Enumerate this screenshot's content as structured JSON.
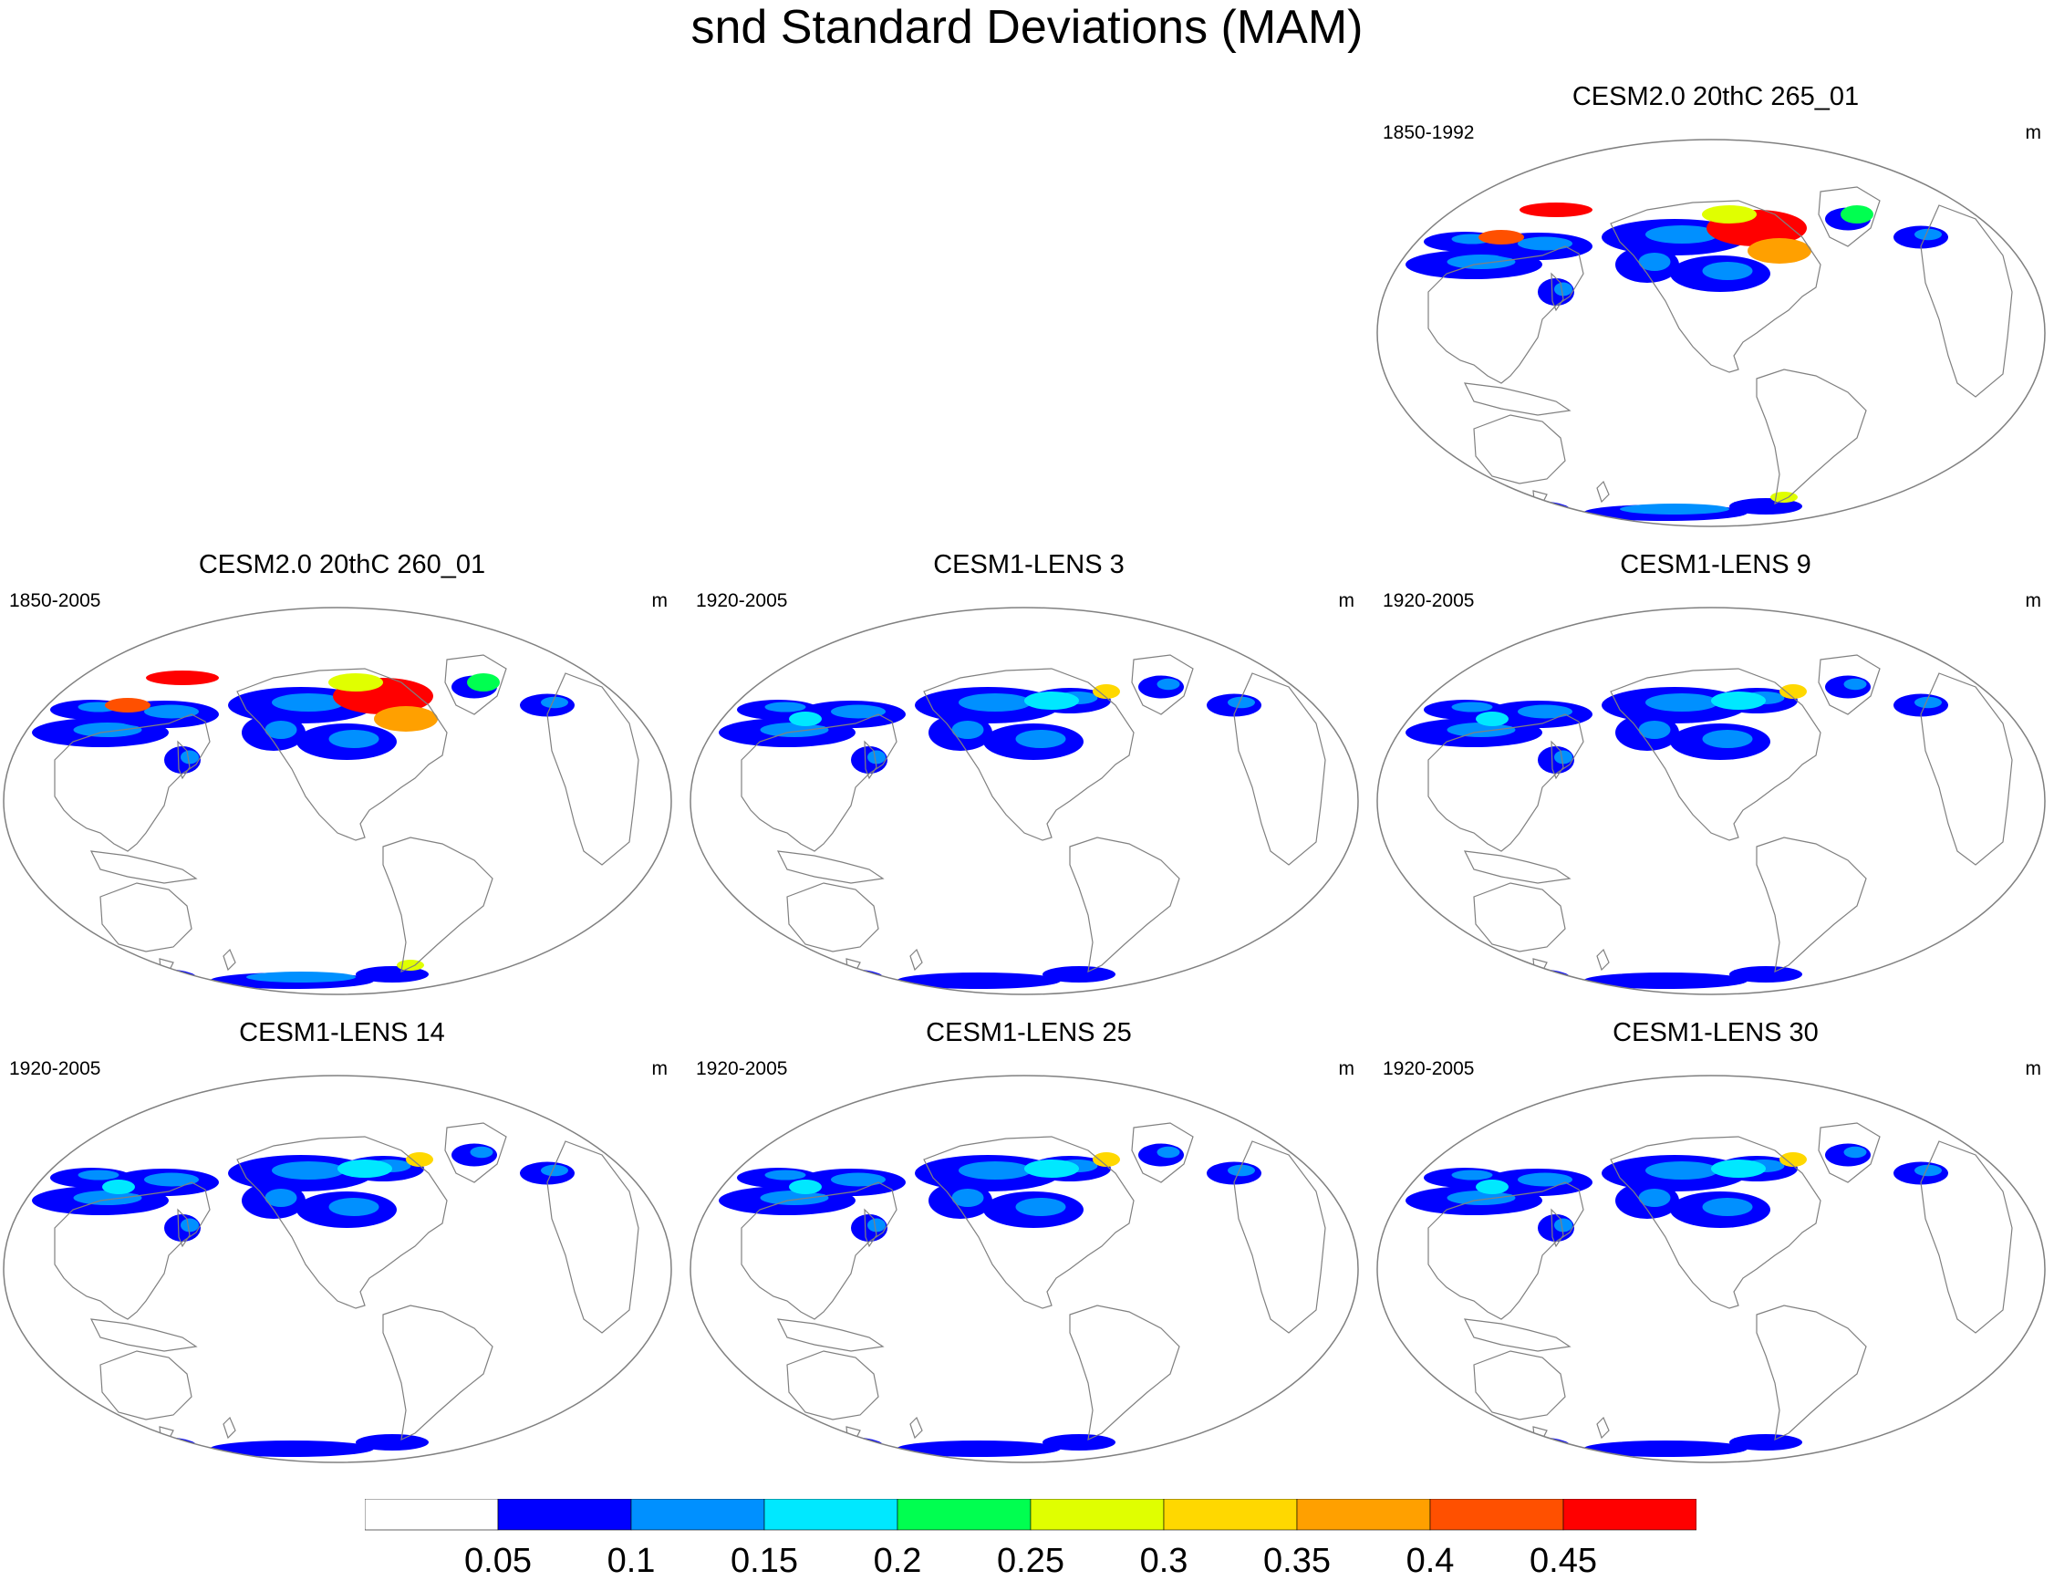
{
  "title": "snd Standard Deviations (MAM)",
  "panels": [
    {
      "id": "cesm2-265",
      "title": "CESM2.0 20thC 265_01",
      "period": "1850-1992",
      "units": "m",
      "intensity": "high"
    },
    {
      "id": "cesm2-260",
      "title": "CESM2.0 20thC 260_01",
      "period": "1850-2005",
      "units": "m",
      "intensity": "high"
    },
    {
      "id": "lens-3",
      "title": "CESM1-LENS 3",
      "period": "1920-2005",
      "units": "m",
      "intensity": "low"
    },
    {
      "id": "lens-9",
      "title": "CESM1-LENS 9",
      "period": "1920-2005",
      "units": "m",
      "intensity": "low"
    },
    {
      "id": "lens-14",
      "title": "CESM1-LENS 14",
      "period": "1920-2005",
      "units": "m",
      "intensity": "low"
    },
    {
      "id": "lens-25",
      "title": "CESM1-LENS 25",
      "period": "1920-2005",
      "units": "m",
      "intensity": "low"
    },
    {
      "id": "lens-30",
      "title": "CESM1-LENS 30",
      "period": "1920-2005",
      "units": "m",
      "intensity": "low"
    }
  ],
  "colorbar": {
    "labels": [
      "0.05",
      "0.1",
      "0.15",
      "0.2",
      "0.25",
      "0.3",
      "0.35",
      "0.4",
      "0.45"
    ],
    "colors": [
      "#ffffff",
      "#0000ff",
      "#0090ff",
      "#00e8ff",
      "#00ff50",
      "#e0ff00",
      "#ffd800",
      "#ffa000",
      "#ff5000",
      "#ff0000"
    ]
  }
}
